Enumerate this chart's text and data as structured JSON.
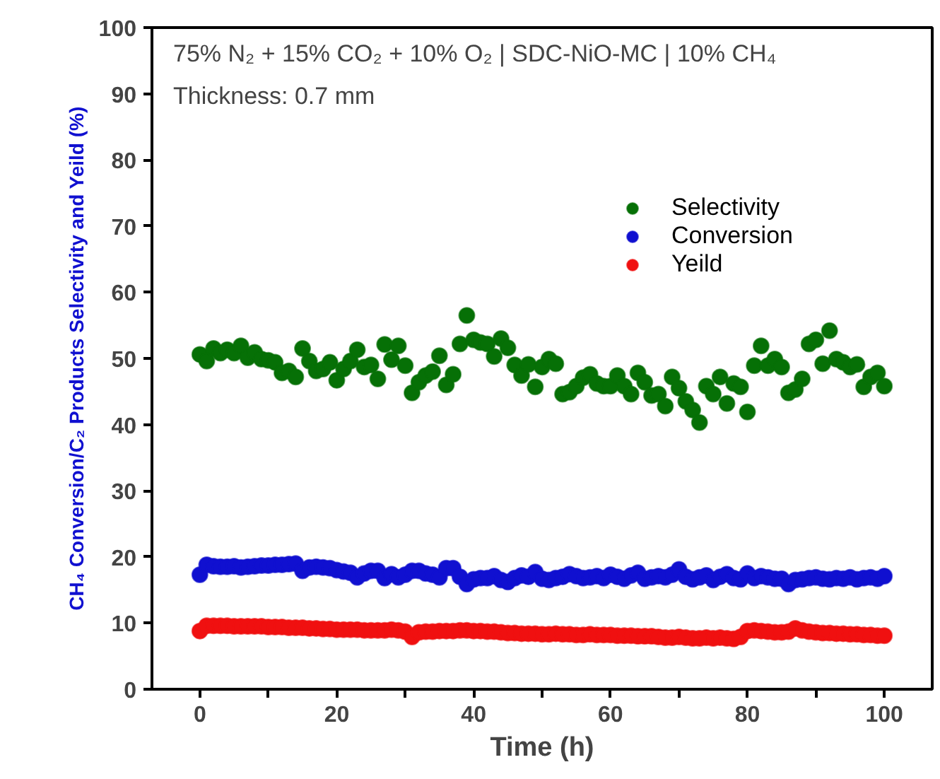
{
  "chart_data": {
    "type": "scatter",
    "xlabel": "Time (h)",
    "ylabel": "CH₄ Conversion/C₂ Products Selectivity and Yeild (%)",
    "annotations": [
      "75% N₂ + 15% CO₂ + 10% O₂ | SDC-NiO-MC | 10% CH₄",
      "Thickness: 0.7 mm"
    ],
    "x": [
      0,
      1,
      2,
      3,
      4,
      5,
      6,
      7,
      8,
      9,
      10,
      11,
      12,
      13,
      14,
      15,
      16,
      17,
      18,
      19,
      20,
      21,
      22,
      23,
      24,
      25,
      26,
      27,
      28,
      29,
      30,
      31,
      32,
      33,
      34,
      35,
      36,
      37,
      38,
      39,
      40,
      41,
      42,
      43,
      44,
      45,
      46,
      47,
      48,
      49,
      50,
      51,
      52,
      53,
      54,
      55,
      56,
      57,
      58,
      59,
      60,
      61,
      62,
      63,
      64,
      65,
      66,
      67,
      68,
      69,
      70,
      71,
      72,
      73,
      74,
      75,
      76,
      77,
      78,
      79,
      80,
      81,
      82,
      83,
      84,
      85,
      86,
      87,
      88,
      89,
      90,
      91,
      92,
      93,
      94,
      95,
      96,
      97,
      98,
      99,
      100
    ],
    "series": [
      {
        "name": "Selectivity",
        "color": "#067006",
        "values": [
          50.6,
          49.6,
          51.5,
          50.8,
          51.3,
          50.8,
          51.9,
          50.1,
          50.9,
          49.9,
          49.7,
          49.4,
          47.8,
          48.1,
          47.2,
          51.5,
          49.6,
          48.1,
          48.4,
          49.4,
          46.7,
          48.4,
          49.6,
          51.3,
          48.7,
          49.0,
          46.9,
          52.1,
          49.8,
          51.9,
          48.9,
          44.8,
          46.4,
          47.4,
          48.0,
          50.4,
          46.0,
          47.6,
          52.2,
          56.5,
          52.8,
          52.4,
          52.2,
          50.3,
          53.0,
          51.6,
          49.0,
          47.4,
          49.1,
          45.7,
          48.7,
          49.9,
          49.2,
          44.6,
          44.9,
          45.8,
          47.1,
          47.6,
          46.2,
          45.8,
          45.8,
          47.4,
          45.8,
          44.6,
          47.8,
          46.4,
          44.4,
          44.6,
          42.8,
          47.2,
          45.5,
          43.5,
          42.2,
          40.3,
          45.8,
          44.6,
          47.2,
          43.2,
          46.2,
          45.7,
          41.9,
          48.9,
          51.9,
          48.9,
          49.9,
          48.7,
          44.8,
          45.3,
          46.9,
          52.2,
          52.8,
          49.2,
          54.2,
          49.9,
          49.4,
          48.7,
          49.1,
          45.7,
          47.2,
          47.8,
          45.8
        ]
      },
      {
        "name": "Conversion",
        "color": "#1010d0",
        "values": [
          17.3,
          18.8,
          18.6,
          18.5,
          18.5,
          18.6,
          18.4,
          18.5,
          18.6,
          18.7,
          18.7,
          18.8,
          18.8,
          18.9,
          19.0,
          17.9,
          18.4,
          18.5,
          18.4,
          18.3,
          18.0,
          17.8,
          17.6,
          16.9,
          17.5,
          17.9,
          17.9,
          16.8,
          17.4,
          16.9,
          17.3,
          17.9,
          17.9,
          17.5,
          17.3,
          16.9,
          18.3,
          18.3,
          17.0,
          15.9,
          16.6,
          16.8,
          16.8,
          17.1,
          16.5,
          16.2,
          16.8,
          17.2,
          17.0,
          17.7,
          16.7,
          16.5,
          16.8,
          17.0,
          17.4,
          17.1,
          16.8,
          16.9,
          17.1,
          16.8,
          17.3,
          17.0,
          16.7,
          17.2,
          17.6,
          16.7,
          16.9,
          17.1,
          16.9,
          17.3,
          18.1,
          17.0,
          16.6,
          16.9,
          17.2,
          16.5,
          17.0,
          17.4,
          16.8,
          16.6,
          17.5,
          16.8,
          17.1,
          16.9,
          16.7,
          16.7,
          15.9,
          16.5,
          16.6,
          16.8,
          16.9,
          16.7,
          16.6,
          16.8,
          16.7,
          16.9,
          16.6,
          16.8,
          16.9,
          16.7,
          17.1
        ]
      },
      {
        "name": "Yeild",
        "color": "#f01010",
        "values": [
          8.8,
          9.6,
          9.6,
          9.6,
          9.6,
          9.5,
          9.5,
          9.5,
          9.5,
          9.5,
          9.4,
          9.4,
          9.4,
          9.3,
          9.3,
          9.3,
          9.2,
          9.2,
          9.1,
          9.1,
          9.0,
          9.0,
          9.0,
          9.0,
          8.9,
          8.9,
          8.9,
          8.9,
          9.0,
          8.9,
          8.7,
          7.9,
          8.6,
          8.7,
          8.7,
          8.8,
          8.8,
          8.8,
          8.9,
          8.9,
          8.8,
          8.8,
          8.7,
          8.7,
          8.6,
          8.5,
          8.5,
          8.4,
          8.4,
          8.4,
          8.3,
          8.3,
          8.4,
          8.3,
          8.3,
          8.2,
          8.2,
          8.3,
          8.2,
          8.2,
          8.2,
          8.1,
          8.1,
          8.1,
          8.0,
          8.0,
          8.0,
          7.9,
          7.8,
          7.8,
          7.9,
          7.8,
          7.7,
          7.7,
          7.8,
          7.7,
          7.8,
          7.7,
          7.6,
          7.9,
          8.8,
          8.9,
          8.8,
          8.7,
          8.6,
          8.6,
          8.7,
          9.2,
          8.9,
          8.7,
          8.6,
          8.5,
          8.5,
          8.4,
          8.4,
          8.3,
          8.3,
          8.2,
          8.2,
          8.1,
          8.1
        ]
      }
    ],
    "xlim": [
      -7,
      107
    ],
    "ylim": [
      0,
      100
    ],
    "xticks": [
      0,
      {
        "value": 10,
        "label": null
      },
      20,
      {
        "value": 30,
        "label": null
      },
      40,
      {
        "value": 50,
        "label": null
      },
      60,
      {
        "value": 70,
        "label": null
      },
      80,
      {
        "value": 90,
        "label": null
      },
      100
    ],
    "yticks": [
      0,
      10,
      20,
      30,
      40,
      50,
      60,
      70,
      80,
      90,
      100
    ],
    "marker": "circle",
    "legend": "top right",
    "grid": false
  }
}
